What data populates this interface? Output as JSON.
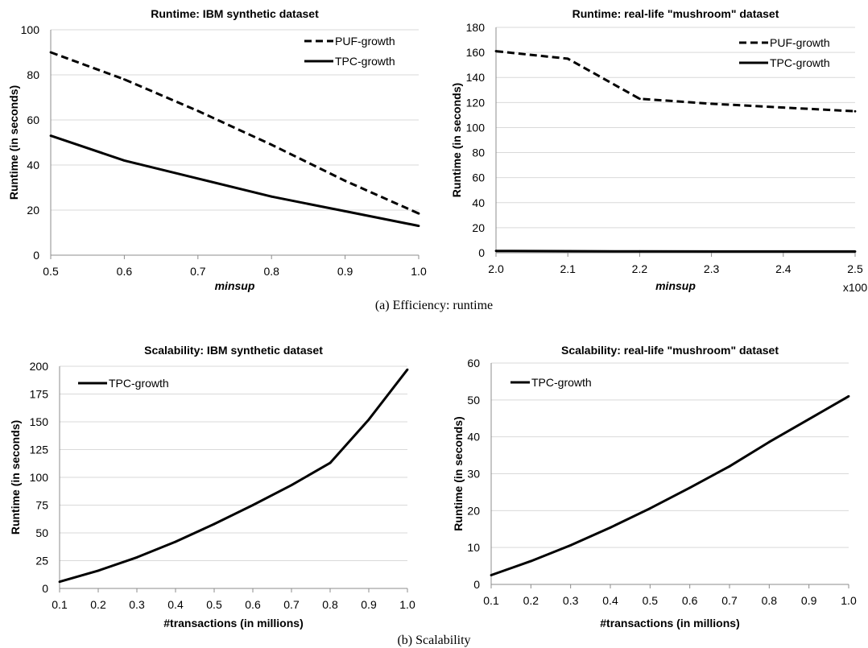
{
  "captions": {
    "top": "(a) Efficiency:  runtime",
    "bottom": "(b) Scalability"
  },
  "chart_data": [
    {
      "id": "a1",
      "type": "line",
      "title": "Runtime: IBM synthetic dataset",
      "xlabel": "minsup",
      "ylabel": "Runtime (in seconds)",
      "x": [
        0.5,
        0.6,
        0.7,
        0.8,
        0.9,
        1.0
      ],
      "x_tick_labels": [
        "0.5",
        "0.6",
        "0.7",
        "0.8",
        "0.9",
        "1.0"
      ],
      "y_ticks": [
        0,
        20,
        40,
        60,
        80,
        100
      ],
      "ylim": [
        0,
        100
      ],
      "grid": true,
      "legend_position": "top-right",
      "series": [
        {
          "name": "PUF-growth",
          "style": "dashed",
          "values": [
            90,
            78,
            64,
            49,
            33,
            18.5
          ]
        },
        {
          "name": "TPC-growth",
          "style": "solid",
          "values": [
            53,
            42,
            34,
            26,
            19.5,
            13
          ]
        }
      ]
    },
    {
      "id": "a2",
      "type": "line",
      "title": "Runtime: real-life \"mushroom\" dataset",
      "xlabel": "minsup",
      "ylabel": "Runtime (in seconds)",
      "x_multiplier_label": "x100",
      "x": [
        2.0,
        2.1,
        2.2,
        2.3,
        2.4,
        2.5
      ],
      "x_tick_labels": [
        "2.0",
        "2.1",
        "2.2",
        "2.3",
        "2.4",
        "2.5"
      ],
      "y_ticks": [
        0,
        20,
        40,
        60,
        80,
        100,
        120,
        140,
        160,
        180
      ],
      "ylim": [
        0,
        180
      ],
      "grid": true,
      "legend_position": "top-right",
      "series": [
        {
          "name": "PUF-growth",
          "style": "dashed",
          "values": [
            161,
            155,
            123,
            119,
            116,
            113
          ]
        },
        {
          "name": "TPC-growth",
          "style": "solid",
          "values": [
            1.5,
            1.3,
            1.1,
            1.0,
            1.0,
            1.0
          ]
        }
      ]
    },
    {
      "id": "b1",
      "type": "line",
      "title": "Scalability: IBM synthetic dataset",
      "xlabel": "#transactions (in millions)",
      "ylabel": "Runtime (in seconds)",
      "x": [
        0.1,
        0.2,
        0.3,
        0.4,
        0.5,
        0.6,
        0.7,
        0.8,
        0.9,
        1.0
      ],
      "x_tick_labels": [
        "0.1",
        "0.2",
        "0.3",
        "0.4",
        "0.5",
        "0.6",
        "0.7",
        "0.8",
        "0.9",
        "1.0"
      ],
      "y_ticks": [
        0,
        25,
        50,
        75,
        100,
        125,
        150,
        175,
        200
      ],
      "ylim": [
        0,
        200
      ],
      "grid": true,
      "legend_position": "top-left",
      "series": [
        {
          "name": "TPC-growth",
          "style": "solid",
          "values": [
            6,
            16,
            28,
            42,
            58,
            75,
            93,
            113,
            152,
            197
          ]
        }
      ]
    },
    {
      "id": "b2",
      "type": "line",
      "title": "Scalability: real-life \"mushroom\" dataset",
      "xlabel": "#transactions (in millions)",
      "ylabel": "Runtime (in seconds)",
      "x": [
        0.1,
        0.2,
        0.3,
        0.4,
        0.5,
        0.6,
        0.7,
        0.8,
        0.9,
        1.0
      ],
      "x_tick_labels": [
        "0.1",
        "0.2",
        "0.3",
        "0.4",
        "0.5",
        "0.6",
        "0.7",
        "0.8",
        "0.9",
        "1.0"
      ],
      "y_ticks": [
        0,
        10,
        20,
        30,
        40,
        50,
        60
      ],
      "ylim": [
        0,
        60
      ],
      "grid": true,
      "legend_position": "top-left",
      "series": [
        {
          "name": "TPC-growth",
          "style": "solid",
          "values": [
            2.5,
            6.3,
            10.6,
            15.4,
            20.6,
            26.2,
            32.0,
            38.6,
            44.8,
            51.0
          ]
        }
      ]
    }
  ]
}
